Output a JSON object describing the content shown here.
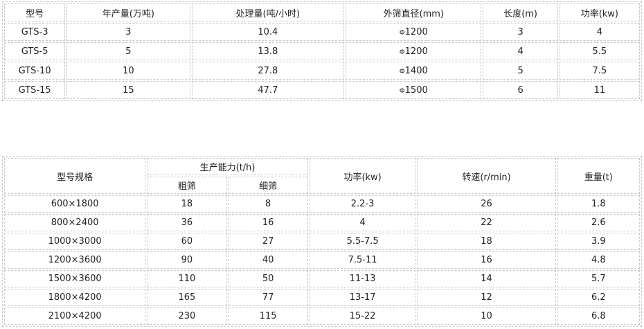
{
  "table1": {
    "headers": [
      "型号",
      "年产量(万吨)",
      "处理量(吨/小时)",
      "外筛直径(mm)",
      "长度(m)",
      "功率(kw)"
    ],
    "rows": [
      [
        "GTS-3",
        "3",
        "10.4",
        "Φ1200",
        "3",
        "4"
      ],
      [
        "GTS-5",
        "5",
        "13.8",
        "Φ1200",
        "4",
        "5.5"
      ],
      [
        "GTS-10",
        "10",
        "27.8",
        "Φ1400",
        "5",
        "7.5"
      ],
      [
        "GTS-15",
        "15",
        "47.7",
        "Φ1500",
        "6",
        "11"
      ]
    ]
  },
  "table2": {
    "headers": {
      "model": "型号规格",
      "capacity": "生产能力(t/h)",
      "coarse": "粗筛",
      "fine": "细筛",
      "power": "功率(kw)",
      "speed": "转速(r/min)",
      "weight": "重量(t)"
    },
    "rows": [
      [
        "600×1800",
        "18",
        "8",
        "2.2-3",
        "26",
        "1.8"
      ],
      [
        "800×2400",
        "36",
        "16",
        "4",
        "22",
        "2.6"
      ],
      [
        "1000×3000",
        "60",
        "27",
        "5.5-7.5",
        "18",
        "3.9"
      ],
      [
        "1200×3600",
        "90",
        "40",
        "7.5-11",
        "16",
        "4.8"
      ],
      [
        "1500×3600",
        "110",
        "50",
        "11-13",
        "14",
        "5.7"
      ],
      [
        "1800×4200",
        "165",
        "77",
        "13-17",
        "12",
        "6.2"
      ],
      [
        "2100×4200",
        "230",
        "115",
        "15-22",
        "10",
        "6.8"
      ]
    ]
  }
}
